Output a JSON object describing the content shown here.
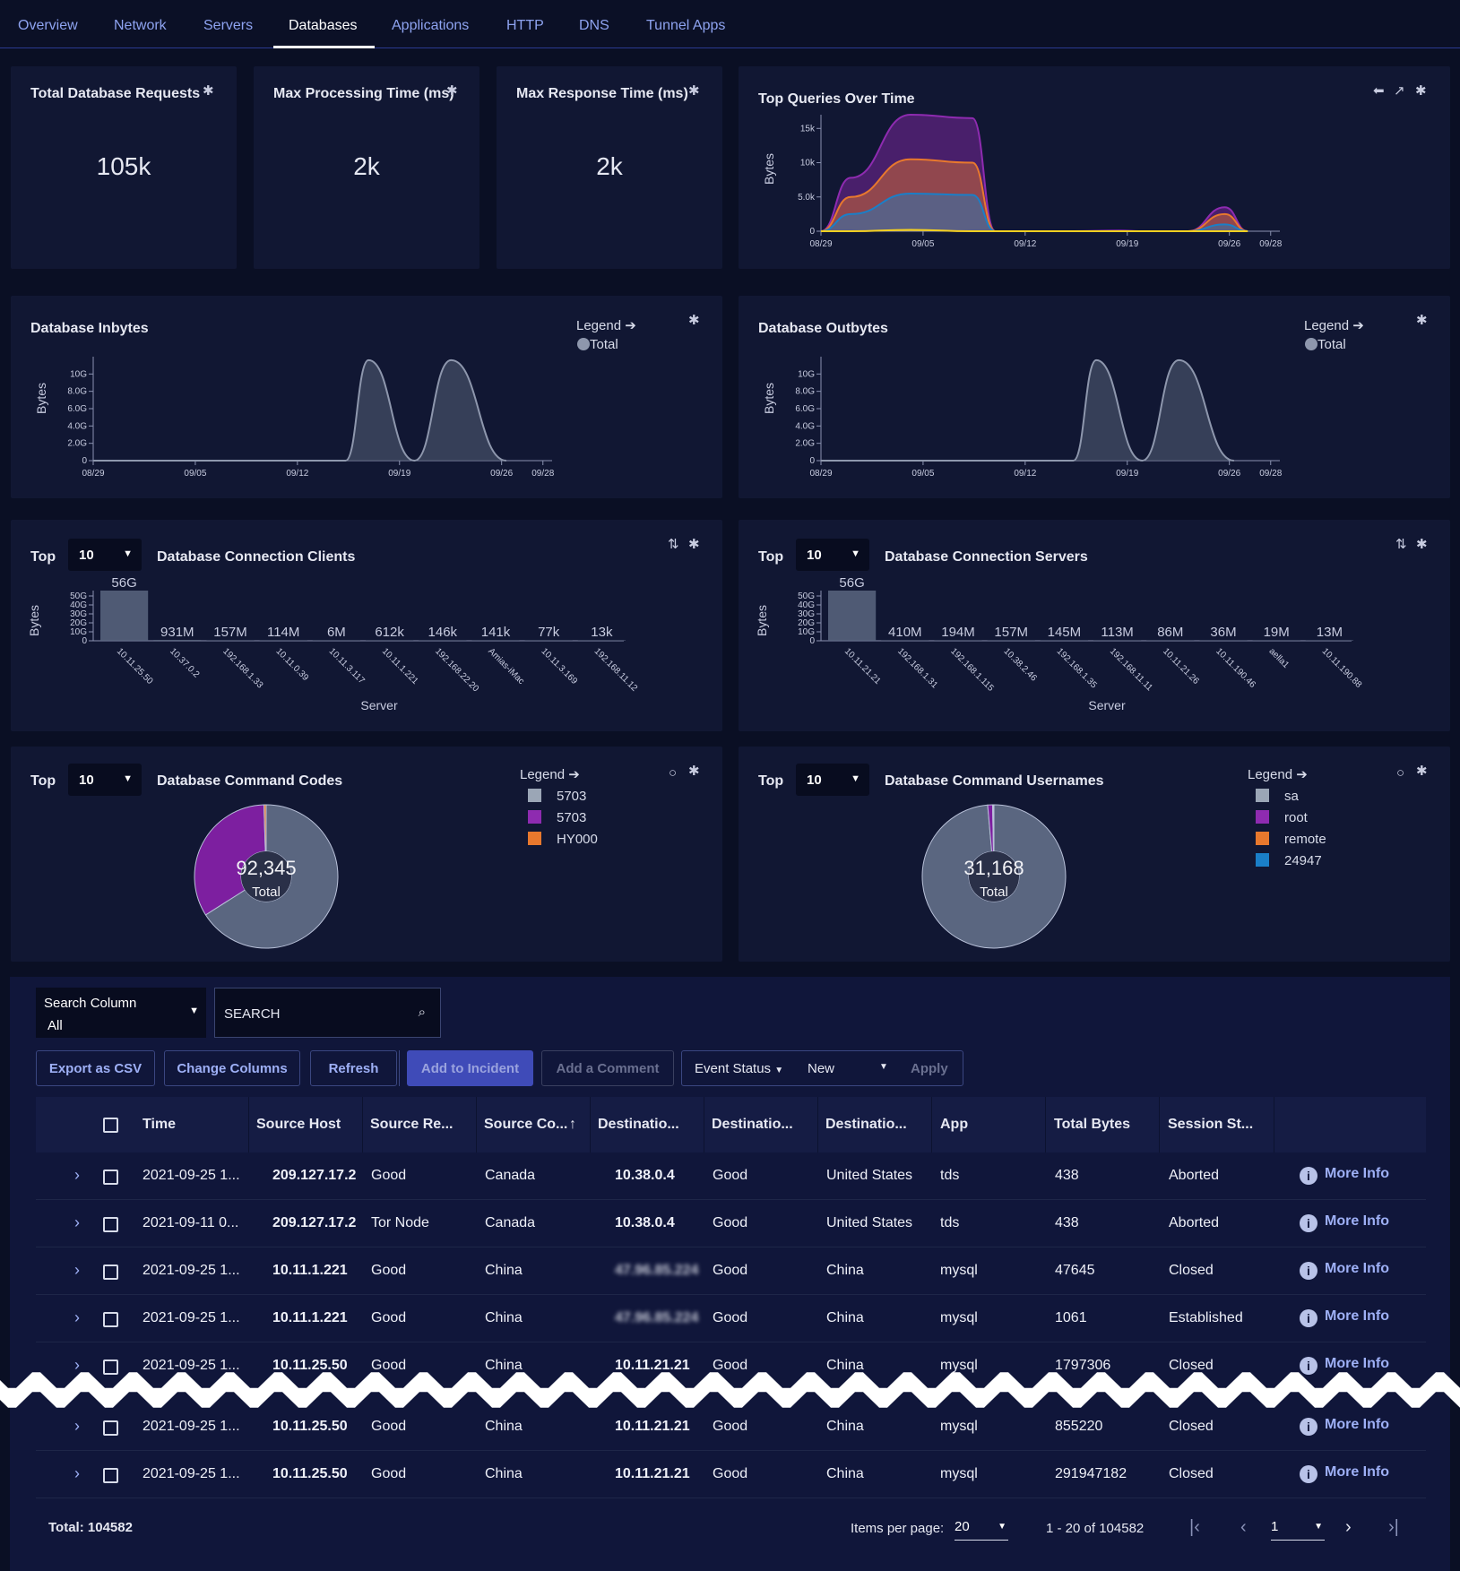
{
  "nav": {
    "tabs": [
      "Overview",
      "Network",
      "Servers",
      "Databases",
      "Applications",
      "HTTP",
      "DNS",
      "Tunnel Apps"
    ],
    "active": "Databases"
  },
  "kpis": [
    {
      "title": "Total Database Requests",
      "value": "105k"
    },
    {
      "title": "Max Processing Time (ms)",
      "value": "2k"
    },
    {
      "title": "Max Response Time (ms)",
      "value": "2k"
    }
  ],
  "top_queries": {
    "title": "Top Queries Over Time"
  },
  "inbytes": {
    "title": "Database Inbytes"
  },
  "outbytes": {
    "title": "Database Outbytes"
  },
  "legend": {
    "label": "Legend",
    "total": "Total"
  },
  "top": {
    "label": "Top",
    "value": "10"
  },
  "clients": {
    "title": "Database Connection Clients"
  },
  "servers": {
    "title": "Database Connection Servers"
  },
  "codes": {
    "title": "Database Command Codes",
    "total_value": "92,345",
    "total_label": "Total",
    "legend": [
      {
        "label": "5703",
        "color": "#9ba6b6"
      },
      {
        "label": "5703",
        "color": "#8e2bb0"
      },
      {
        "label": "HY000",
        "color": "#e8782d"
      }
    ]
  },
  "users": {
    "title": "Database Command Usernames",
    "total_value": "31,168",
    "total_label": "Total",
    "legend": [
      {
        "label": "sa",
        "color": "#9ba6b6"
      },
      {
        "label": "root",
        "color": "#8e2bb0"
      },
      {
        "label": "remote",
        "color": "#e8782d"
      },
      {
        "label": "24947",
        "color": "#1a7fc8"
      }
    ]
  },
  "chart_data": [
    {
      "type": "area",
      "title": "Top Queries Over Time",
      "ylabel": "Bytes",
      "x_ticks": [
        "08/29",
        "09/05",
        "09/12",
        "09/19",
        "09/26",
        "09/28"
      ],
      "y_ticks": [
        "0",
        "5.0k",
        "10k",
        "15k"
      ],
      "ylim": [
        0,
        17000
      ],
      "series": [
        {
          "color": "#f5d020",
          "values": [
            0,
            0,
            200,
            0,
            0,
            0,
            0,
            0,
            0,
            0,
            0,
            0
          ]
        },
        {
          "color": "#1a7fc8",
          "values": [
            0,
            2500,
            5500,
            5300,
            0,
            0,
            0,
            0,
            0,
            0,
            1000,
            0
          ]
        },
        {
          "color": "#e8782d",
          "values": [
            0,
            5000,
            10500,
            10000,
            0,
            0,
            0,
            0,
            0,
            0,
            2500,
            0
          ]
        },
        {
          "color": "#8e2bb0",
          "values": [
            0,
            7800,
            17000,
            16500,
            0,
            0,
            0,
            100,
            0,
            0,
            3500,
            0
          ]
        }
      ]
    },
    {
      "type": "area",
      "title": "Database Inbytes",
      "ylabel": "Bytes",
      "x_ticks": [
        "08/29",
        "09/05",
        "09/12",
        "09/19",
        "09/26",
        "09/28"
      ],
      "y_ticks": [
        "0",
        "2.0G",
        "4.0G",
        "6.0G",
        "8.0G",
        "10G"
      ],
      "ylim": [
        0,
        12000000000
      ],
      "series": [
        {
          "name": "Total",
          "color": "#5a6680",
          "values": [
            0,
            0,
            0,
            0,
            11600000000,
            0,
            11600000000,
            0
          ]
        }
      ]
    },
    {
      "type": "area",
      "title": "Database Outbytes",
      "ylabel": "Bytes",
      "x_ticks": [
        "08/29",
        "09/05",
        "09/12",
        "09/19",
        "09/26",
        "09/28"
      ],
      "y_ticks": [
        "0",
        "2.0G",
        "4.0G",
        "6.0G",
        "8.0G",
        "10G"
      ],
      "ylim": [
        0,
        12000000000
      ],
      "series": [
        {
          "name": "Total",
          "color": "#5a6680",
          "values": [
            0,
            0,
            0,
            0,
            11600000000,
            0,
            11600000000,
            0
          ]
        }
      ]
    },
    {
      "type": "bar",
      "title": "Database Connection Clients",
      "xlabel": "Server",
      "ylabel": "Bytes",
      "y_ticks": [
        "0",
        "10G",
        "20G",
        "30G",
        "40G",
        "50G"
      ],
      "ylim": [
        0,
        56000000000
      ],
      "categories": [
        "10.11.25.50",
        "10.37.0.2",
        "192.168.1.33",
        "10.11.0.39",
        "10.11.3.117",
        "10.11.1.221",
        "192.168.22.20",
        "Amias-iMac",
        "10.11.3.169",
        "192.168.11.12"
      ],
      "labels": [
        "56G",
        "931M",
        "157M",
        "114M",
        "6M",
        "612k",
        "146k",
        "141k",
        "77k",
        "13k"
      ],
      "values": [
        56000000000,
        931000000,
        157000000,
        114000000,
        6000000,
        612000,
        146000,
        141000,
        77000,
        13000
      ]
    },
    {
      "type": "bar",
      "title": "Database Connection Servers",
      "xlabel": "Server",
      "ylabel": "Bytes",
      "y_ticks": [
        "0",
        "10G",
        "20G",
        "30G",
        "40G",
        "50G"
      ],
      "ylim": [
        0,
        56000000000
      ],
      "categories": [
        "10.11.21.21",
        "192.168.1.31",
        "192.168.1.115",
        "10.38.2.46",
        "192.168.1.35",
        "192.168.11.11",
        "10.11.21.26",
        "10.11.190.46",
        "aella1",
        "10.11.190.88"
      ],
      "labels": [
        "56G",
        "410M",
        "194M",
        "157M",
        "145M",
        "113M",
        "86M",
        "36M",
        "19M",
        "13M"
      ],
      "values": [
        56000000000,
        410000000,
        194000000,
        157000000,
        145000000,
        113000000,
        86000000,
        36000000,
        19000000,
        13000000
      ]
    },
    {
      "type": "pie",
      "title": "Database Command Codes",
      "labels": [
        "5703",
        "5703",
        "HY000"
      ],
      "values": [
        0.66,
        0.335,
        0.005
      ],
      "colors": [
        "#5a6680",
        "#7d1fa0",
        "#e8782d"
      ]
    },
    {
      "type": "pie",
      "title": "Database Command Usernames",
      "labels": [
        "sa",
        "root",
        "remote",
        "24947"
      ],
      "values": [
        0.986,
        0.011,
        0.002,
        0.001
      ],
      "colors": [
        "#5a6680",
        "#7d1fa0",
        "#e8782d",
        "#1a7fc8"
      ]
    }
  ],
  "search": {
    "column_label": "Search Column",
    "column_value": "All",
    "placeholder": "SEARCH"
  },
  "buttons": {
    "export": "Export as CSV",
    "columns": "Change Columns",
    "refresh": "Refresh",
    "incident": "Add to Incident",
    "comment": "Add a Comment",
    "event_status": "Event Status",
    "event_value": "New",
    "apply": "Apply"
  },
  "table": {
    "columns": [
      "Time",
      "Source Host",
      "Source Re...",
      "Source Co...",
      "Destinatio...",
      "Destinatio...",
      "Destinatio...",
      "App",
      "Total Bytes",
      "Session St..."
    ],
    "more_info": "More Info",
    "rows": [
      [
        "2021-09-25 1...",
        "209.127.17.2",
        "Good",
        "Canada",
        "10.38.0.4",
        "Good",
        "United States",
        "tds",
        "438",
        "Aborted"
      ],
      [
        "2021-09-11 0...",
        "209.127.17.2",
        "Tor Node",
        "Canada",
        "10.38.0.4",
        "Good",
        "United States",
        "tds",
        "438",
        "Aborted"
      ],
      [
        "2021-09-25 1...",
        "10.11.1.221",
        "Good",
        "China",
        "47.96.85.224",
        "Good",
        "China",
        "mysql",
        "47645",
        "Closed"
      ],
      [
        "2021-09-25 1...",
        "10.11.1.221",
        "Good",
        "China",
        "47.96.85.224",
        "Good",
        "China",
        "mysql",
        "1061",
        "Established"
      ],
      [
        "2021-09-25 1...",
        "10.11.25.50",
        "Good",
        "China",
        "10.11.21.21",
        "Good",
        "China",
        "mysql",
        "1797306",
        "Closed"
      ],
      [
        "2021-09-25 1...",
        "10.11.25.50",
        "Good",
        "China",
        "10.11.21.21",
        "Good",
        "China",
        "mysql",
        "855220",
        "Closed"
      ],
      [
        "2021-09-25 1...",
        "10.11.25.50",
        "Good",
        "China",
        "10.11.21.21",
        "Good",
        "China",
        "mysql",
        "291947182",
        "Closed"
      ]
    ]
  },
  "footer": {
    "total": "Total: 104582",
    "items_per_page_label": "Items per page:",
    "items_per_page": "20",
    "range": "1 - 20 of 104582",
    "page": "1"
  }
}
